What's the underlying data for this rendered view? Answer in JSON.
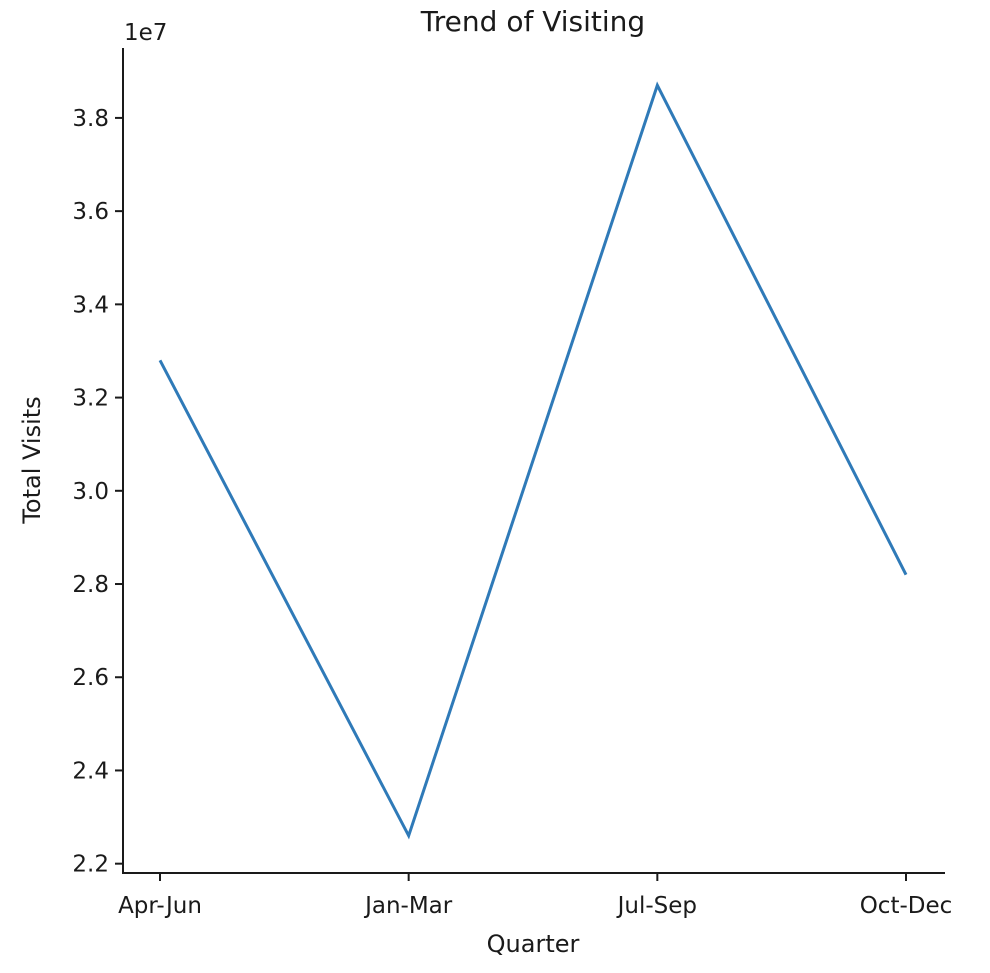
{
  "chart_data": {
    "type": "line",
    "title": "Trend of Visiting",
    "xlabel": "Quarter",
    "ylabel": "Total Visits",
    "y_offset_label": "1e7",
    "categories": [
      "Apr-Jun",
      "Jan-Mar",
      "Jul-Sep",
      "Oct-Dec"
    ],
    "series": [
      {
        "values": [
          32800000,
          22600000,
          38700000,
          28200000
        ],
        "color": "#2f7ab8"
      }
    ],
    "ylim": [
      21800000,
      39500000
    ],
    "yticks": [
      22000000,
      24000000,
      26000000,
      28000000,
      30000000,
      32000000,
      34000000,
      36000000,
      38000000
    ],
    "ytick_labels": [
      "2.2",
      "2.4",
      "2.6",
      "2.8",
      "3.0",
      "3.2",
      "3.4",
      "3.6",
      "3.8"
    ],
    "grid": false,
    "legend": "none"
  }
}
